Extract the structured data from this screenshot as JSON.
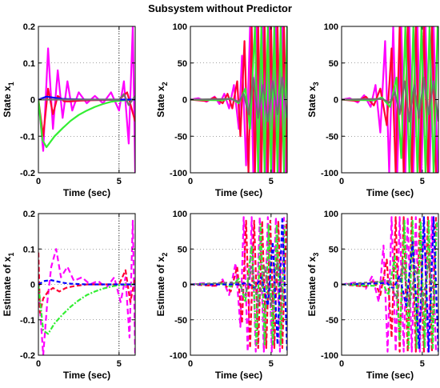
{
  "figure": {
    "title": "Subsystem without Predictor"
  },
  "colors": {
    "red": "#ff0033",
    "magenta": "#ff00ff",
    "green": "#33ee33",
    "blue": "#0000ff",
    "grey": "#707070"
  },
  "chart_data": [
    {
      "type": "line",
      "id": "state-x1",
      "xlabel": "Time (sec)",
      "ylabel": "State x",
      "ylabel_sub": "1",
      "xlim": [
        0,
        6
      ],
      "ylim": [
        -0.2,
        0.2
      ],
      "xticks": [
        0,
        5
      ],
      "yticks": [
        -0.2,
        -0.1,
        0,
        0.1,
        0.2
      ],
      "ytick_labels": [
        "-0.2",
        "-0.1",
        "0",
        "0.1",
        "0.2"
      ],
      "grid": true,
      "dashed": false,
      "vline": 5,
      "series": [
        {
          "color": "magenta",
          "x": [
            0,
            0.3,
            0.6,
            0.9,
            1.2,
            1.5,
            1.8,
            2.1,
            2.5,
            3,
            3.5,
            4,
            4.5,
            5,
            5.3,
            5.6,
            5.85,
            6
          ],
          "y": [
            0,
            -0.14,
            0.14,
            -0.08,
            0.08,
            -0.05,
            0.05,
            -0.03,
            0.02,
            -0.01,
            0.01,
            -0.01,
            0.02,
            -0.03,
            0.05,
            -0.12,
            0.2,
            -0.2
          ]
        },
        {
          "color": "red",
          "x": [
            0,
            0.3,
            0.6,
            0.9,
            1.2,
            1.6,
            2,
            2.5,
            3,
            4,
            5,
            5.5,
            6
          ],
          "y": [
            0,
            -0.1,
            0.03,
            -0.04,
            0.01,
            -0.005,
            -0.005,
            -0.003,
            -0.002,
            -0.001,
            0,
            0.02,
            -0.06
          ]
        },
        {
          "color": "green",
          "x": [
            0,
            0.25,
            0.5,
            1,
            1.5,
            2,
            2.5,
            3,
            3.5,
            4,
            4.5,
            5,
            5.5,
            6
          ],
          "y": [
            0,
            -0.11,
            -0.13,
            -0.1,
            -0.078,
            -0.058,
            -0.042,
            -0.03,
            -0.02,
            -0.012,
            -0.006,
            -0.003,
            -0.001,
            0
          ]
        },
        {
          "color": "blue",
          "x": [
            0,
            0.5,
            1,
            1.5,
            2,
            3,
            4,
            5,
            6
          ],
          "y": [
            0,
            0.008,
            0.005,
            0.002,
            0.001,
            0,
            0,
            0,
            0
          ]
        },
        {
          "color": "grey",
          "x": [
            0,
            1,
            2,
            3,
            4,
            5,
            5.3,
            5.6,
            6
          ],
          "y": [
            0,
            0,
            0,
            0,
            0,
            0,
            0.015,
            -0.015,
            0.01
          ]
        }
      ]
    },
    {
      "type": "line",
      "id": "state-x2",
      "xlabel": "Time (sec)",
      "ylabel": "State x",
      "ylabel_sub": "2",
      "xlim": [
        0,
        6
      ],
      "ylim": [
        -100,
        100
      ],
      "xticks": [
        0,
        5
      ],
      "yticks": [
        -100,
        -50,
        0,
        50,
        100
      ],
      "ytick_labels": [
        "-100",
        "-50",
        "0",
        "50",
        "100"
      ],
      "grid": true,
      "dashed": false,
      "series": [
        {
          "color": "magenta",
          "x": [
            0,
            0.5,
            1,
            1.5,
            1.8,
            2.1,
            2.4,
            2.7,
            3,
            3.2,
            3.45,
            3.7,
            3.9,
            4.1,
            4.3,
            4.5,
            4.7,
            4.9,
            5.1,
            5.3,
            5.5,
            5.7,
            5.9
          ],
          "y": [
            0,
            2,
            -3,
            4,
            -6,
            8,
            -12,
            20,
            -40,
            60,
            -90,
            100,
            -100,
            100,
            -100,
            100,
            -100,
            100,
            -100,
            100,
            -100,
            100,
            -100
          ]
        },
        {
          "color": "red",
          "x": [
            0,
            1,
            1.5,
            2,
            2.3,
            2.6,
            2.9,
            3.1,
            3.35,
            3.6,
            3.8,
            4,
            4.2,
            4.4,
            4.6,
            4.8,
            5,
            5.2,
            5.4,
            5.6,
            5.8,
            6
          ],
          "y": [
            0,
            -2,
            3,
            -5,
            8,
            -12,
            25,
            -50,
            80,
            -100,
            100,
            -100,
            100,
            -100,
            100,
            -100,
            100,
            -100,
            100,
            -100,
            100,
            -100
          ]
        },
        {
          "color": "green",
          "x": [
            0,
            2,
            2.5,
            3,
            3.4,
            3.7,
            4,
            4.2,
            4.4,
            4.6,
            4.8,
            5,
            5.2,
            5.4,
            5.6,
            5.8,
            6
          ],
          "y": [
            0,
            -1,
            2,
            -5,
            15,
            -40,
            100,
            -100,
            100,
            -100,
            100,
            -100,
            100,
            -100,
            100,
            -100,
            100
          ]
        },
        {
          "color": "grey",
          "x": [
            0,
            2.5,
            3,
            3.3,
            3.6,
            3.9,
            4.2,
            4.5,
            4.8,
            5.1,
            5.4,
            5.7,
            6
          ],
          "y": [
            0,
            1,
            -3,
            8,
            -20,
            30,
            -25,
            20,
            -30,
            25,
            -20,
            30,
            -25
          ]
        }
      ]
    },
    {
      "type": "line",
      "id": "state-x3",
      "xlabel": "Time (sec)",
      "ylabel": "State x",
      "ylabel_sub": "3",
      "xlim": [
        0,
        6
      ],
      "ylim": [
        -100,
        100
      ],
      "xticks": [
        0,
        5
      ],
      "yticks": [
        -100,
        -50,
        0,
        50,
        100
      ],
      "ytick_labels": [
        "-100",
        "-50",
        "0",
        "50",
        "100"
      ],
      "grid": true,
      "dashed": false,
      "series": [
        {
          "color": "magenta",
          "x": [
            0,
            0.5,
            1,
            1.4,
            1.8,
            2.1,
            2.4,
            2.7,
            2.95,
            3.2,
            3.45,
            3.7,
            3.95,
            4.2,
            4.45,
            4.7,
            4.95,
            5.2,
            5.45,
            5.7,
            5.95
          ],
          "y": [
            0,
            2,
            -4,
            6,
            -10,
            20,
            -45,
            80,
            -100,
            100,
            -100,
            100,
            -100,
            100,
            -100,
            100,
            -100,
            100,
            -100,
            100,
            -100
          ]
        },
        {
          "color": "red",
          "x": [
            0,
            1,
            1.5,
            2,
            2.4,
            2.8,
            3.1,
            3.35,
            3.6,
            3.85,
            4.1,
            4.35,
            4.6,
            4.85,
            5.1,
            5.35,
            5.6,
            5.85
          ],
          "y": [
            0,
            -2,
            4,
            -8,
            15,
            -35,
            70,
            -100,
            100,
            -100,
            100,
            -100,
            100,
            -100,
            100,
            -100,
            100,
            -100
          ]
        },
        {
          "color": "green",
          "x": [
            0,
            2,
            2.5,
            3,
            3.4,
            3.7,
            3.95,
            4.2,
            4.45,
            4.7,
            4.95,
            5.2,
            5.45,
            5.7,
            5.95
          ],
          "y": [
            0,
            -1,
            3,
            -10,
            30,
            -80,
            100,
            -100,
            100,
            -100,
            100,
            -100,
            100,
            -100,
            100
          ]
        },
        {
          "color": "grey",
          "x": [
            0,
            2.5,
            3,
            3.3,
            3.6,
            3.9,
            4.2,
            4.5,
            4.8,
            5.1,
            5.4,
            5.7,
            6
          ],
          "y": [
            0,
            1,
            -4,
            10,
            -20,
            25,
            -30,
            20,
            -25,
            30,
            -20,
            25,
            -30
          ]
        }
      ]
    },
    {
      "type": "line",
      "id": "estimate-x1",
      "xlabel": "Time (sec)",
      "ylabel": "Estimate of x",
      "ylabel_sub": "1",
      "xlim": [
        0,
        6
      ],
      "ylim": [
        -0.2,
        0.2
      ],
      "xticks": [
        0,
        5
      ],
      "yticks": [
        -0.2,
        -0.1,
        0,
        0.1,
        0.2
      ],
      "ytick_labels": [
        "-0.2",
        "-0.1",
        "0",
        "0.1",
        "0.2"
      ],
      "grid": true,
      "dashed": true,
      "vline": 5,
      "series": [
        {
          "color": "magenta",
          "x": [
            0,
            0.3,
            0.55,
            0.8,
            1.1,
            1.4,
            1.8,
            2.2,
            2.7,
            3.2,
            3.7,
            4.2,
            4.7,
            5.1,
            5.4,
            5.65,
            5.85,
            6
          ],
          "y": [
            0,
            -0.2,
            -0.05,
            0.05,
            0.1,
            0.02,
            0.05,
            0.01,
            0.02,
            0,
            0.01,
            -0.01,
            0.02,
            -0.05,
            0.02,
            -0.15,
            0.18,
            -0.2
          ]
        },
        {
          "color": "red",
          "x": [
            0,
            0.1,
            0.3,
            0.6,
            0.9,
            1.3,
            1.7,
            2.2,
            3,
            4,
            5,
            5.4,
            5.7,
            6
          ],
          "y": [
            0.09,
            -0.08,
            -0.04,
            -0.02,
            -0.01,
            -0.02,
            -0.01,
            -0.005,
            0,
            0,
            0,
            0.04,
            -0.05,
            0.02
          ]
        },
        {
          "color": "green",
          "x": [
            0,
            0.3,
            0.6,
            1,
            1.5,
            2,
            2.5,
            3,
            3.5,
            4,
            4.5,
            5,
            5.5,
            6
          ],
          "y": [
            0,
            -0.13,
            -0.14,
            -0.11,
            -0.085,
            -0.063,
            -0.045,
            -0.03,
            -0.02,
            -0.012,
            -0.006,
            -0.002,
            0,
            0
          ]
        },
        {
          "color": "blue",
          "x": [
            0,
            0.4,
            0.8,
            1.2,
            1.6,
            2,
            3,
            4,
            5,
            6
          ],
          "y": [
            0,
            0.01,
            0.012,
            0.008,
            0.004,
            0.002,
            0,
            0,
            0,
            0
          ]
        }
      ]
    },
    {
      "type": "line",
      "id": "estimate-x2",
      "xlabel": "Time (sec)",
      "ylabel": "Estimate of x",
      "ylabel_sub": "2",
      "xlim": [
        0,
        6
      ],
      "ylim": [
        -100,
        100
      ],
      "xticks": [
        0,
        5
      ],
      "yticks": [
        -100,
        -50,
        0,
        50,
        100
      ],
      "ytick_labels": [
        "-100",
        "-50",
        "0",
        "50",
        "100"
      ],
      "grid": true,
      "dashed": true,
      "series": [
        {
          "color": "magenta",
          "x": [
            0,
            1,
            1.5,
            2,
            2.4,
            2.8,
            3.1,
            3.3,
            3.55,
            3.8,
            4.05,
            4.3,
            4.55,
            4.8,
            5.05,
            5.3,
            5.55,
            5.8
          ],
          "y": [
            0,
            2,
            -4,
            7,
            -15,
            30,
            -60,
            95,
            -95,
            95,
            -95,
            95,
            -95,
            95,
            -95,
            95,
            -95,
            95
          ]
        },
        {
          "color": "red",
          "x": [
            0,
            1.5,
            2,
            2.5,
            2.9,
            3.2,
            3.45,
            3.7,
            3.95,
            4.2,
            4.45,
            4.7,
            4.95,
            5.2,
            5.45,
            5.7,
            5.95
          ],
          "y": [
            0,
            -2,
            4,
            -10,
            25,
            -55,
            90,
            -90,
            90,
            -90,
            90,
            -90,
            90,
            -90,
            90,
            -90,
            90
          ]
        },
        {
          "color": "green",
          "x": [
            0,
            2,
            2.5,
            3,
            3.4,
            3.8,
            4.1,
            4.35,
            4.6,
            4.85,
            5.1,
            5.35,
            5.6,
            5.85
          ],
          "y": [
            0,
            1,
            -3,
            8,
            -25,
            55,
            -85,
            85,
            -85,
            85,
            -85,
            85,
            -85,
            85
          ]
        },
        {
          "color": "blue",
          "x": [
            0,
            3,
            3.5,
            4,
            4.4,
            4.8,
            5.1,
            5.4,
            5.7,
            6
          ],
          "y": [
            0,
            0,
            2,
            -5,
            10,
            -30,
            60,
            -85,
            95,
            -95
          ]
        },
        {
          "color": "grey",
          "x": [
            0,
            3,
            3.4,
            3.8,
            4.2,
            4.6,
            5,
            5.4,
            5.8
          ],
          "y": [
            0,
            3,
            -15,
            25,
            -30,
            25,
            -30,
            30,
            -25
          ]
        }
      ]
    },
    {
      "type": "line",
      "id": "estimate-x3",
      "xlabel": "Time (sec)",
      "ylabel": "Estimate of x",
      "ylabel_sub": "3",
      "xlim": [
        0,
        6
      ],
      "ylim": [
        -100,
        100
      ],
      "xticks": [
        0,
        5
      ],
      "yticks": [
        -100,
        -50,
        0,
        50,
        100
      ],
      "ytick_labels": [
        "-100",
        "-50",
        "0",
        "50",
        "100"
      ],
      "grid": true,
      "dashed": true,
      "series": [
        {
          "color": "magenta",
          "x": [
            0,
            1,
            1.5,
            1.9,
            2.3,
            2.6,
            2.85,
            3.1,
            3.35,
            3.6,
            3.85,
            4.1,
            4.35,
            4.6,
            4.85,
            5.1,
            5.35,
            5.6,
            5.85
          ],
          "y": [
            0,
            3,
            -6,
            12,
            -25,
            55,
            -95,
            95,
            -95,
            95,
            -95,
            95,
            -95,
            95,
            -95,
            95,
            -95,
            95,
            -95
          ]
        },
        {
          "color": "red",
          "x": [
            0,
            1.5,
            2,
            2.4,
            2.8,
            3.1,
            3.35,
            3.6,
            3.85,
            4.1,
            4.35,
            4.6,
            4.85,
            5.1,
            5.35,
            5.6,
            5.85
          ],
          "y": [
            0,
            -3,
            6,
            -15,
            35,
            -75,
            95,
            -95,
            95,
            -95,
            95,
            -95,
            95,
            -95,
            95,
            -95,
            95
          ]
        },
        {
          "color": "green",
          "x": [
            0,
            2,
            2.5,
            2.9,
            3.3,
            3.6,
            3.9,
            4.15,
            4.4,
            4.65,
            4.9,
            5.15,
            5.4,
            5.65,
            5.9
          ],
          "y": [
            0,
            -2,
            5,
            -15,
            40,
            -80,
            90,
            -90,
            90,
            -90,
            90,
            -90,
            90,
            -90,
            90
          ]
        },
        {
          "color": "blue",
          "x": [
            0,
            2.8,
            3.2,
            3.6,
            4,
            4.4,
            4.8,
            5.1,
            5.4,
            5.7,
            6
          ],
          "y": [
            0,
            2,
            -6,
            12,
            -30,
            60,
            -90,
            95,
            -95,
            95,
            -95
          ]
        },
        {
          "color": "grey",
          "x": [
            0,
            3,
            3.4,
            3.8,
            4.2,
            4.6,
            5,
            5.4,
            5.8
          ],
          "y": [
            0,
            5,
            -20,
            30,
            -30,
            25,
            -30,
            30,
            -25
          ]
        }
      ]
    }
  ]
}
